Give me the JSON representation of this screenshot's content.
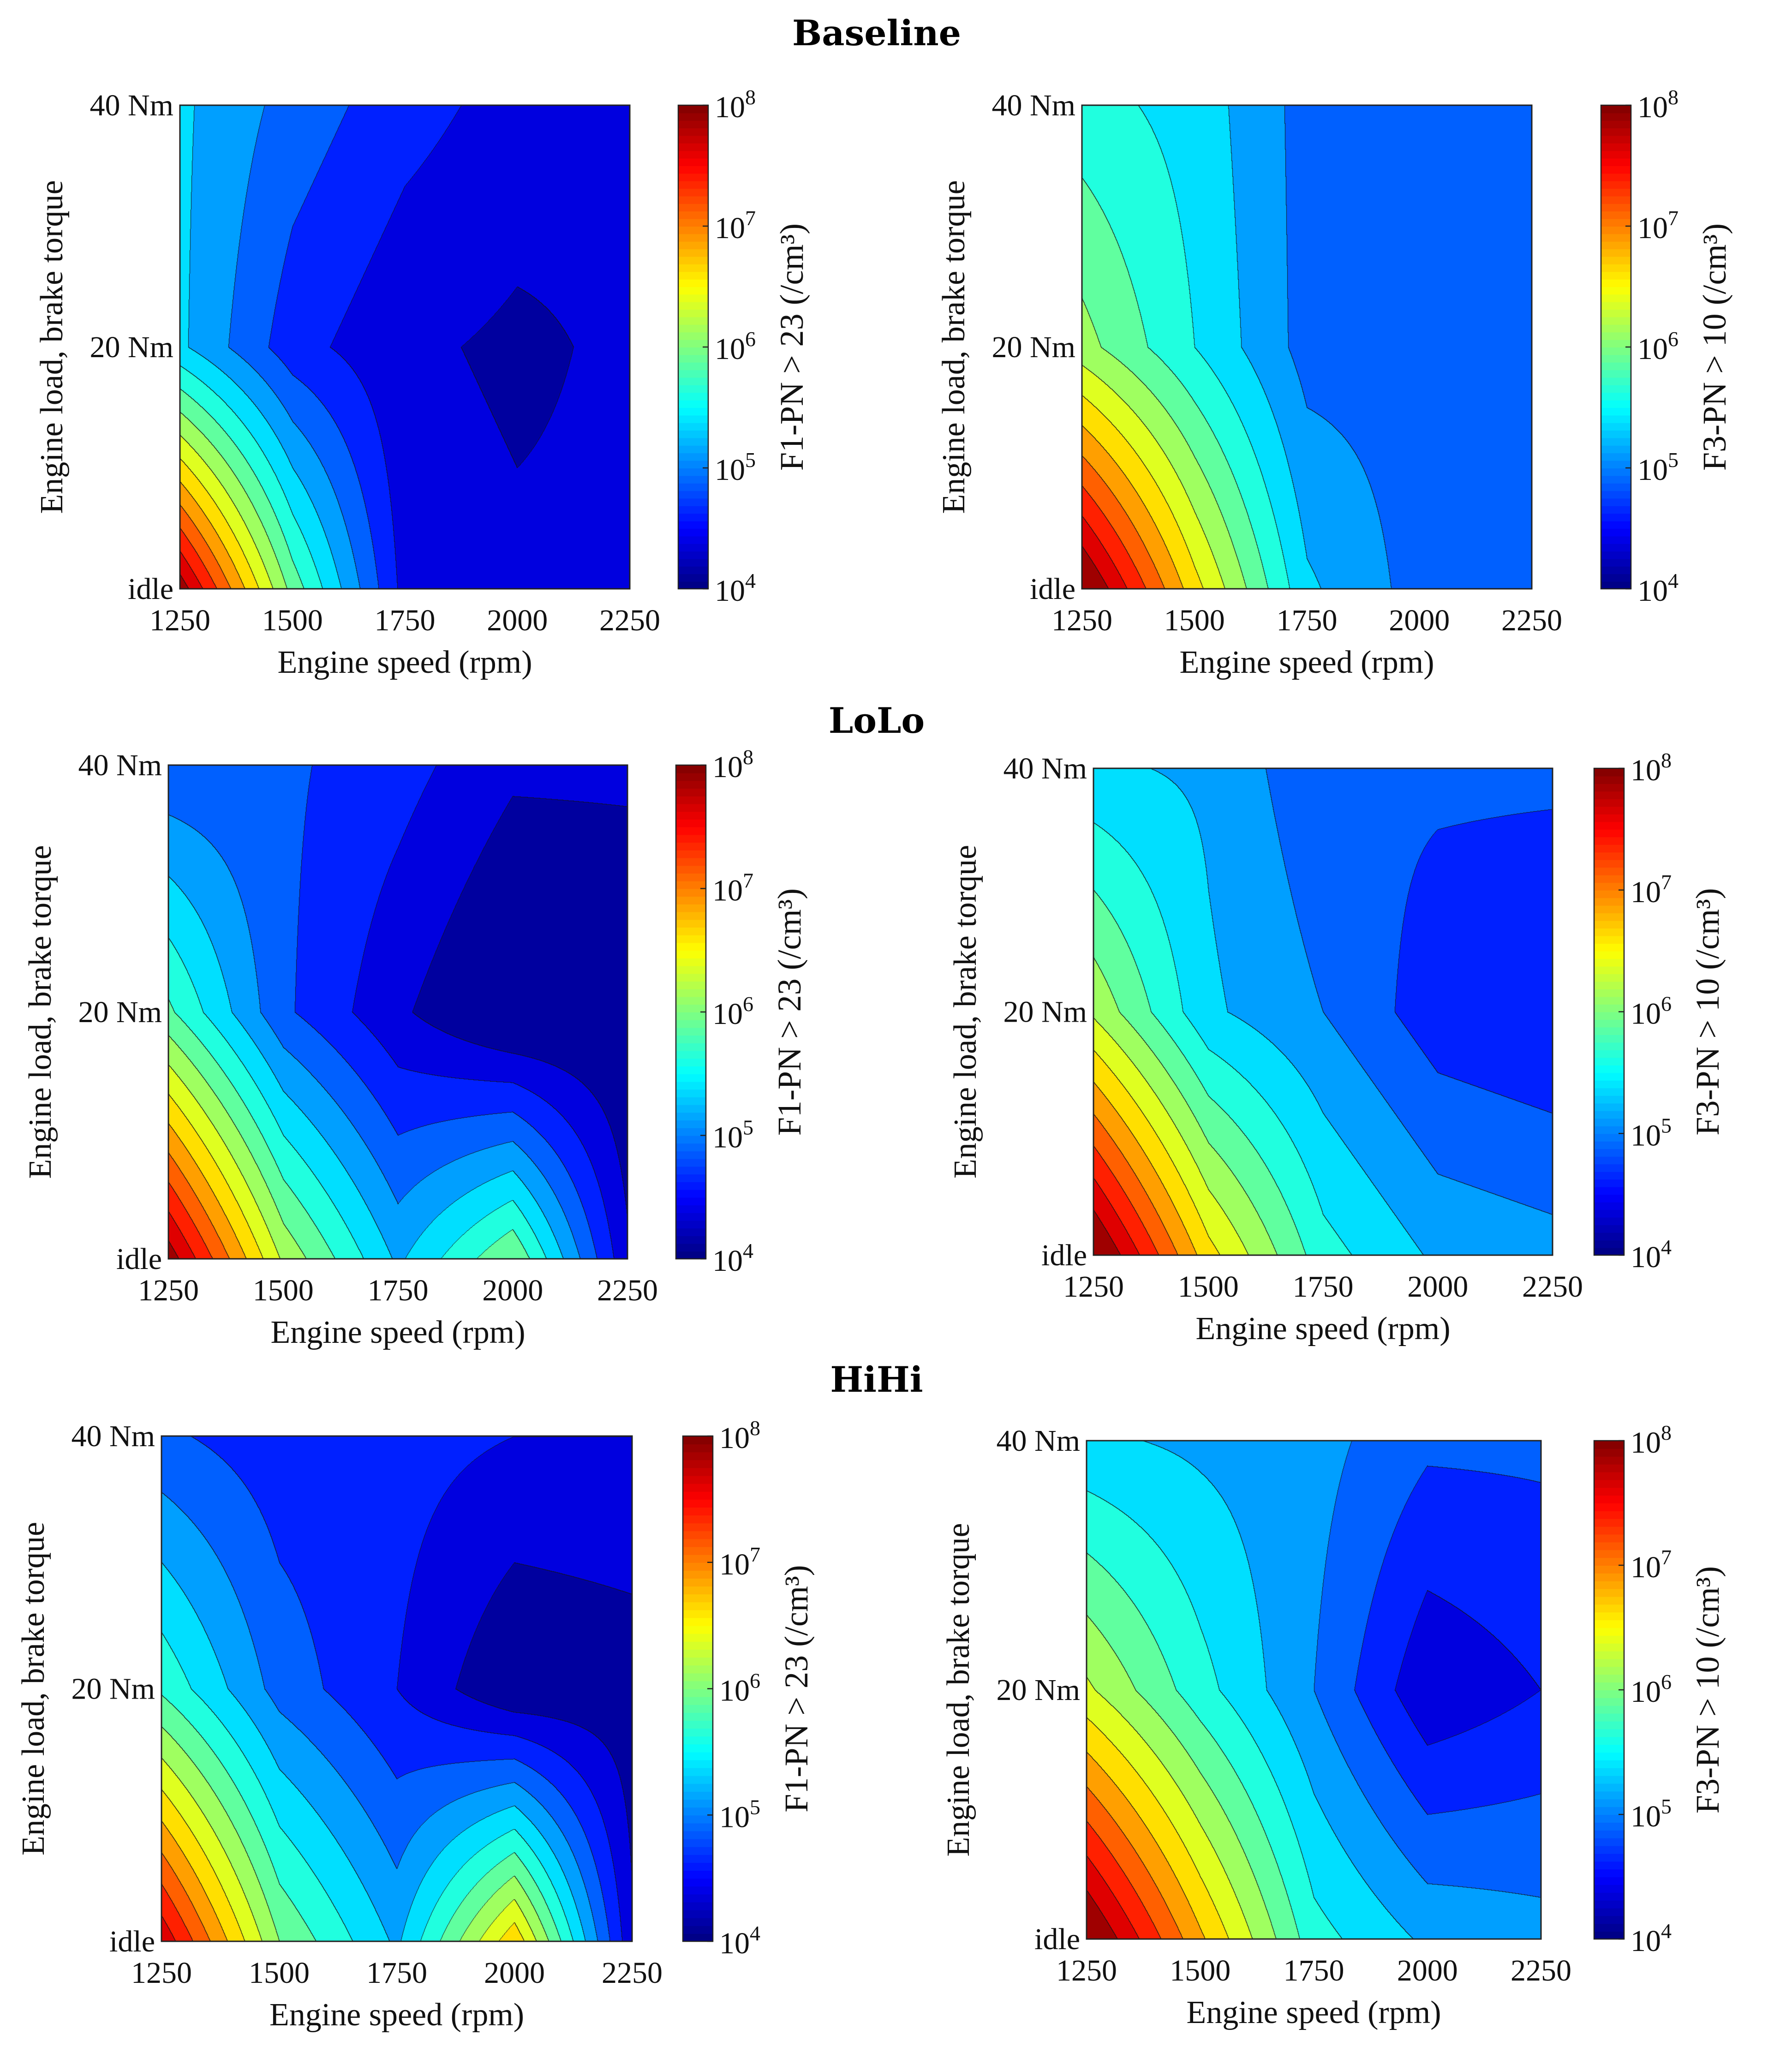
{
  "figure": {
    "type": "contour-maps",
    "rows": [
      "Baseline",
      "LoLo",
      "HiHi"
    ]
  },
  "chart_data": [
    {
      "type": "heatmap",
      "subtype": "filled-contour",
      "title": "Baseline",
      "xlabel": "Engine speed (rpm)",
      "ylabel": "Engine load, brake torque",
      "x_ticks": [
        "1250",
        "1500",
        "1750",
        "2000",
        "2250"
      ],
      "y_ticks": [
        "idle",
        "20 Nm",
        "40 Nm"
      ],
      "x": [
        1250,
        1500,
        1750,
        2000,
        2250
      ],
      "y": [
        "idle",
        "20 Nm",
        "40 Nm"
      ],
      "colorbar_label": "F1-PN > 23 (/cm³)",
      "colorbar_ticks": [
        4,
        5,
        6,
        7,
        8
      ],
      "colorbar_scale": "log10",
      "colorbar_range": [
        10000.0,
        100000000.0
      ],
      "z_log10": [
        [
          7.9,
          5.9,
          4.4,
          4.3,
          4.3
        ],
        [
          5.3,
          4.6,
          4.3,
          4.2,
          4.3
        ],
        [
          5.3,
          4.9,
          4.6,
          4.4,
          4.3
        ]
      ]
    },
    {
      "type": "heatmap",
      "subtype": "filled-contour",
      "title": "Baseline",
      "xlabel": "Engine speed (rpm)",
      "ylabel": "Engine load, brake torque",
      "x_ticks": [
        "1250",
        "1500",
        "1750",
        "2000",
        "2250"
      ],
      "y_ticks": [
        "idle",
        "20 Nm",
        "40 Nm"
      ],
      "x": [
        1250,
        1500,
        1750,
        2000,
        2250
      ],
      "y": [
        "idle",
        "20 Nm",
        "40 Nm"
      ],
      "colorbar_label": "F3-PN > 10 (/cm³)",
      "colorbar_ticks": [
        4,
        5,
        6,
        7,
        8
      ],
      "colorbar_scale": "log10",
      "colorbar_range": [
        10000.0,
        100000000.0
      ],
      "z_log10": [
        [
          8.1,
          6.6,
          5.3,
          4.9,
          4.9
        ],
        [
          6.1,
          5.5,
          4.9,
          4.9,
          4.9
        ],
        [
          5.6,
          5.4,
          4.9,
          4.9,
          4.9
        ]
      ]
    },
    {
      "type": "heatmap",
      "subtype": "filled-contour",
      "title": "LoLo",
      "xlabel": "Engine speed (rpm)",
      "ylabel": "Engine load, brake torque",
      "x_ticks": [
        "1250",
        "1500",
        "1750",
        "2000",
        "2250"
      ],
      "y_ticks": [
        "idle",
        "20 Nm",
        "40 Nm"
      ],
      "x": [
        1250,
        1500,
        1750,
        2000,
        2250
      ],
      "y": [
        "idle",
        "20 Nm",
        "40 Nm"
      ],
      "colorbar_label": "F1-PN > 23 (/cm³)",
      "colorbar_ticks": [
        4,
        5,
        6,
        7,
        8
      ],
      "colorbar_scale": "log10",
      "colorbar_range": [
        10000.0,
        100000000.0
      ],
      "z_log10": [
        [
          7.9,
          6.2,
          5.2,
          6.0,
          4.3
        ],
        [
          5.8,
          4.8,
          4.3,
          3.9,
          4.0
        ],
        [
          4.8,
          4.8,
          4.6,
          4.3,
          4.3
        ]
      ]
    },
    {
      "type": "heatmap",
      "subtype": "filled-contour",
      "title": "LoLo",
      "xlabel": "Engine speed (rpm)",
      "ylabel": "Engine load, brake torque",
      "x_ticks": [
        "1250",
        "1500",
        "1750",
        "2000",
        "2250"
      ],
      "y_ticks": [
        "idle",
        "20 Nm",
        "40 Nm"
      ],
      "x": [
        1250,
        1500,
        1750,
        2000,
        2250
      ],
      "y": [
        "idle",
        "20 Nm",
        "40 Nm"
      ],
      "colorbar_label": "F3-PN > 10 (/cm³)",
      "colorbar_ticks": [
        4,
        5,
        6,
        7,
        8
      ],
      "colorbar_scale": "log10",
      "colorbar_range": [
        10000.0,
        100000000.0
      ],
      "z_log10": [
        [
          8.1,
          6.6,
          5.6,
          5.2,
          5.1
        ],
        [
          6.2,
          5.3,
          5.0,
          4.6,
          4.5
        ],
        [
          5.3,
          5.2,
          4.8,
          4.8,
          4.8
        ]
      ]
    },
    {
      "type": "heatmap",
      "subtype": "filled-contour",
      "title": "HiHi",
      "xlabel": "Engine speed (rpm)",
      "ylabel": "Engine load, brake torque",
      "x_ticks": [
        "1250",
        "1500",
        "1750",
        "2000",
        "2250"
      ],
      "y_ticks": [
        "idle",
        "20 Nm",
        "40 Nm"
      ],
      "x": [
        1250,
        1500,
        1750,
        2000,
        2250
      ],
      "y": [
        "idle",
        "20 Nm",
        "40 Nm"
      ],
      "colorbar_label": "F1-PN > 23 (/cm³)",
      "colorbar_ticks": [
        4,
        5,
        6,
        7,
        8
      ],
      "colorbar_scale": "log10",
      "colorbar_range": [
        10000.0,
        100000000.0
      ],
      "z_log10": [
        [
          7.7,
          6.0,
          5.2,
          6.7,
          4.3
        ],
        [
          5.7,
          4.9,
          4.5,
          4.0,
          4.1
        ],
        [
          4.8,
          4.6,
          4.6,
          4.5,
          4.5
        ]
      ]
    },
    {
      "type": "heatmap",
      "subtype": "filled-contour",
      "title": "HiHi",
      "xlabel": "Engine speed (rpm)",
      "ylabel": "Engine load, brake torque",
      "x_ticks": [
        "1250",
        "1500",
        "1750",
        "2000",
        "2250"
      ],
      "y_ticks": [
        "idle",
        "20 Nm",
        "40 Nm"
      ],
      "x": [
        1250,
        1500,
        1750,
        2000,
        2250
      ],
      "y": [
        "idle",
        "20 Nm",
        "40 Nm"
      ],
      "colorbar_label": "F3-PN > 10 (/cm³)",
      "colorbar_ticks": [
        4,
        5,
        6,
        7,
        8
      ],
      "colorbar_scale": "log10",
      "colorbar_range": [
        10000.0,
        100000000.0
      ],
      "z_log10": [
        [
          8.1,
          6.8,
          5.6,
          5.2,
          5.1
        ],
        [
          6.3,
          5.6,
          5.0,
          4.3,
          4.5
        ],
        [
          5.3,
          5.2,
          5.1,
          4.8,
          4.8
        ]
      ]
    }
  ]
}
